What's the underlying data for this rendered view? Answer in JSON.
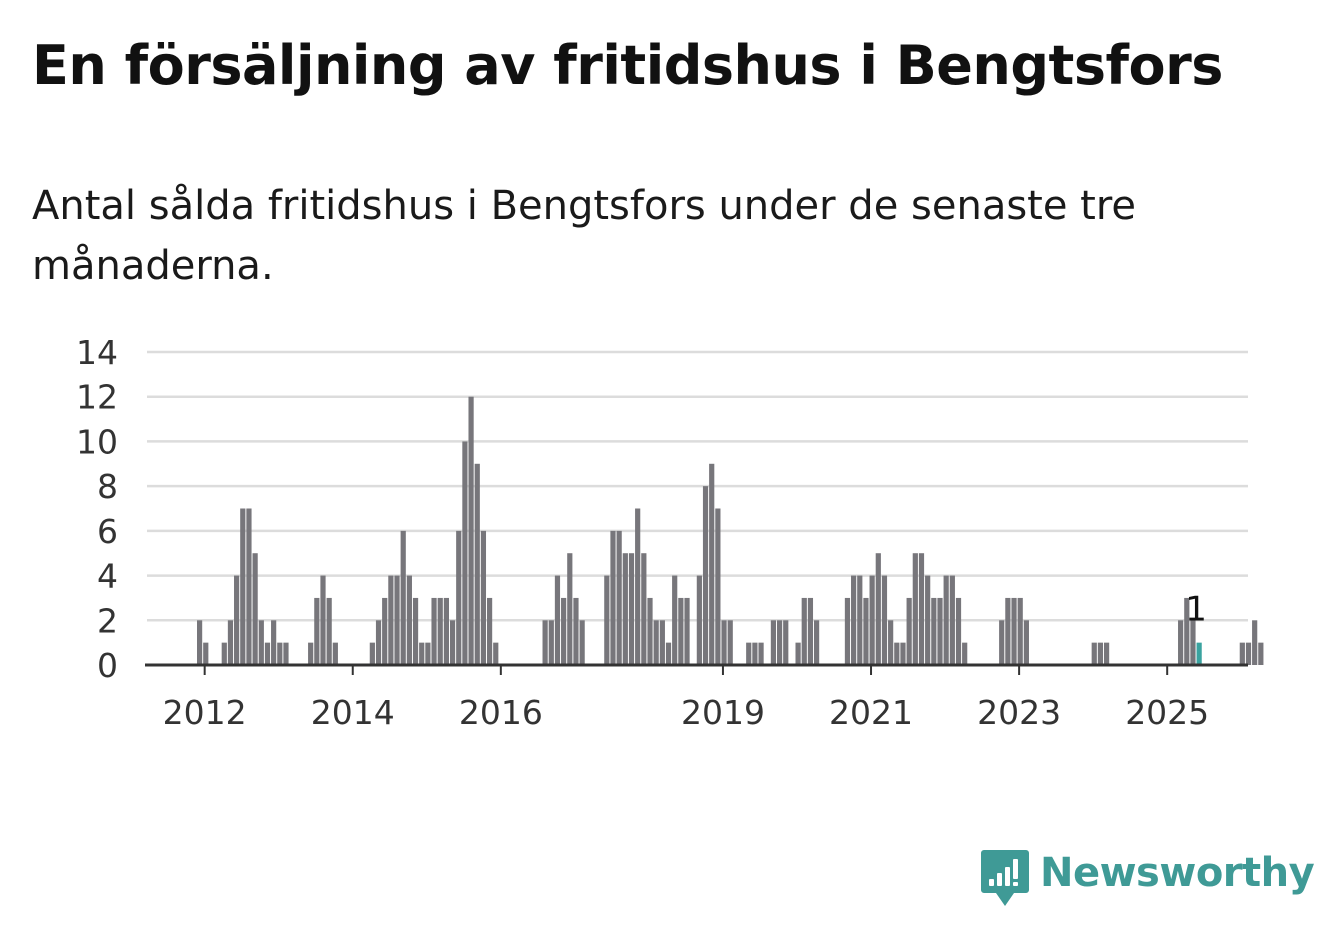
{
  "brand": {
    "name": "Newsworthy",
    "color": "#3f9a96",
    "icon": "chart-speech-bubble-icon"
  },
  "chart_data": {
    "type": "bar",
    "title": "En försäljning av fritidshus i Bengtsfors",
    "subtitle": "Antal sålda fritidshus i Bengtsfors under de senaste tre månaderna.",
    "xlabel": "",
    "ylabel": "",
    "ylim": [
      0,
      14
    ],
    "yticks": [
      0,
      2,
      4,
      6,
      8,
      10,
      12,
      14
    ],
    "xtick_labels": [
      {
        "label": "2012",
        "date": "2012-01"
      },
      {
        "label": "2014",
        "date": "2014-01"
      },
      {
        "label": "2016",
        "date": "2016-01"
      },
      {
        "label": "2019",
        "date": "2019-01"
      },
      {
        "label": "2021",
        "date": "2021-01"
      },
      {
        "label": "2023",
        "date": "2023-01"
      },
      {
        "label": "2025",
        "date": "2025-01"
      }
    ],
    "grid": true,
    "bar_color": "#77767b",
    "highlight_color": "#3aa3a0",
    "start_month": "2011-03",
    "values": [
      0,
      0,
      0,
      0,
      0,
      0,
      0,
      0,
      0,
      2,
      1,
      0,
      0,
      1,
      2,
      4,
      7,
      7,
      5,
      2,
      1,
      2,
      1,
      1,
      0,
      0,
      0,
      1,
      3,
      4,
      3,
      1,
      0,
      0,
      0,
      0,
      0,
      1,
      2,
      3,
      4,
      4,
      6,
      4,
      3,
      1,
      1,
      3,
      3,
      3,
      2,
      6,
      10,
      12,
      9,
      6,
      3,
      1,
      0,
      0,
      0,
      0,
      0,
      0,
      0,
      2,
      2,
      4,
      3,
      5,
      3,
      2,
      0,
      0,
      0,
      4,
      6,
      6,
      5,
      5,
      7,
      5,
      3,
      2,
      2,
      1,
      4,
      3,
      3,
      0,
      4,
      8,
      9,
      7,
      2,
      2,
      0,
      0,
      1,
      1,
      1,
      0,
      2,
      2,
      2,
      0,
      1,
      3,
      3,
      2,
      0,
      0,
      0,
      0,
      3,
      4,
      4,
      3,
      4,
      5,
      4,
      2,
      1,
      1,
      3,
      5,
      5,
      4,
      3,
      3,
      4,
      4,
      3,
      1,
      0,
      0,
      0,
      0,
      0,
      2,
      3,
      3,
      3,
      2,
      0,
      0,
      0,
      0,
      0,
      0,
      0,
      0,
      0,
      0,
      1,
      1,
      1,
      0,
      0,
      0,
      0,
      0,
      0,
      0,
      0,
      0,
      0,
      0,
      2,
      3,
      2,
      1,
      0,
      0,
      0,
      0,
      0,
      0,
      1,
      1,
      2,
      1
    ],
    "highlight": {
      "date": "2025-06",
      "value": 1,
      "label": "1"
    }
  }
}
